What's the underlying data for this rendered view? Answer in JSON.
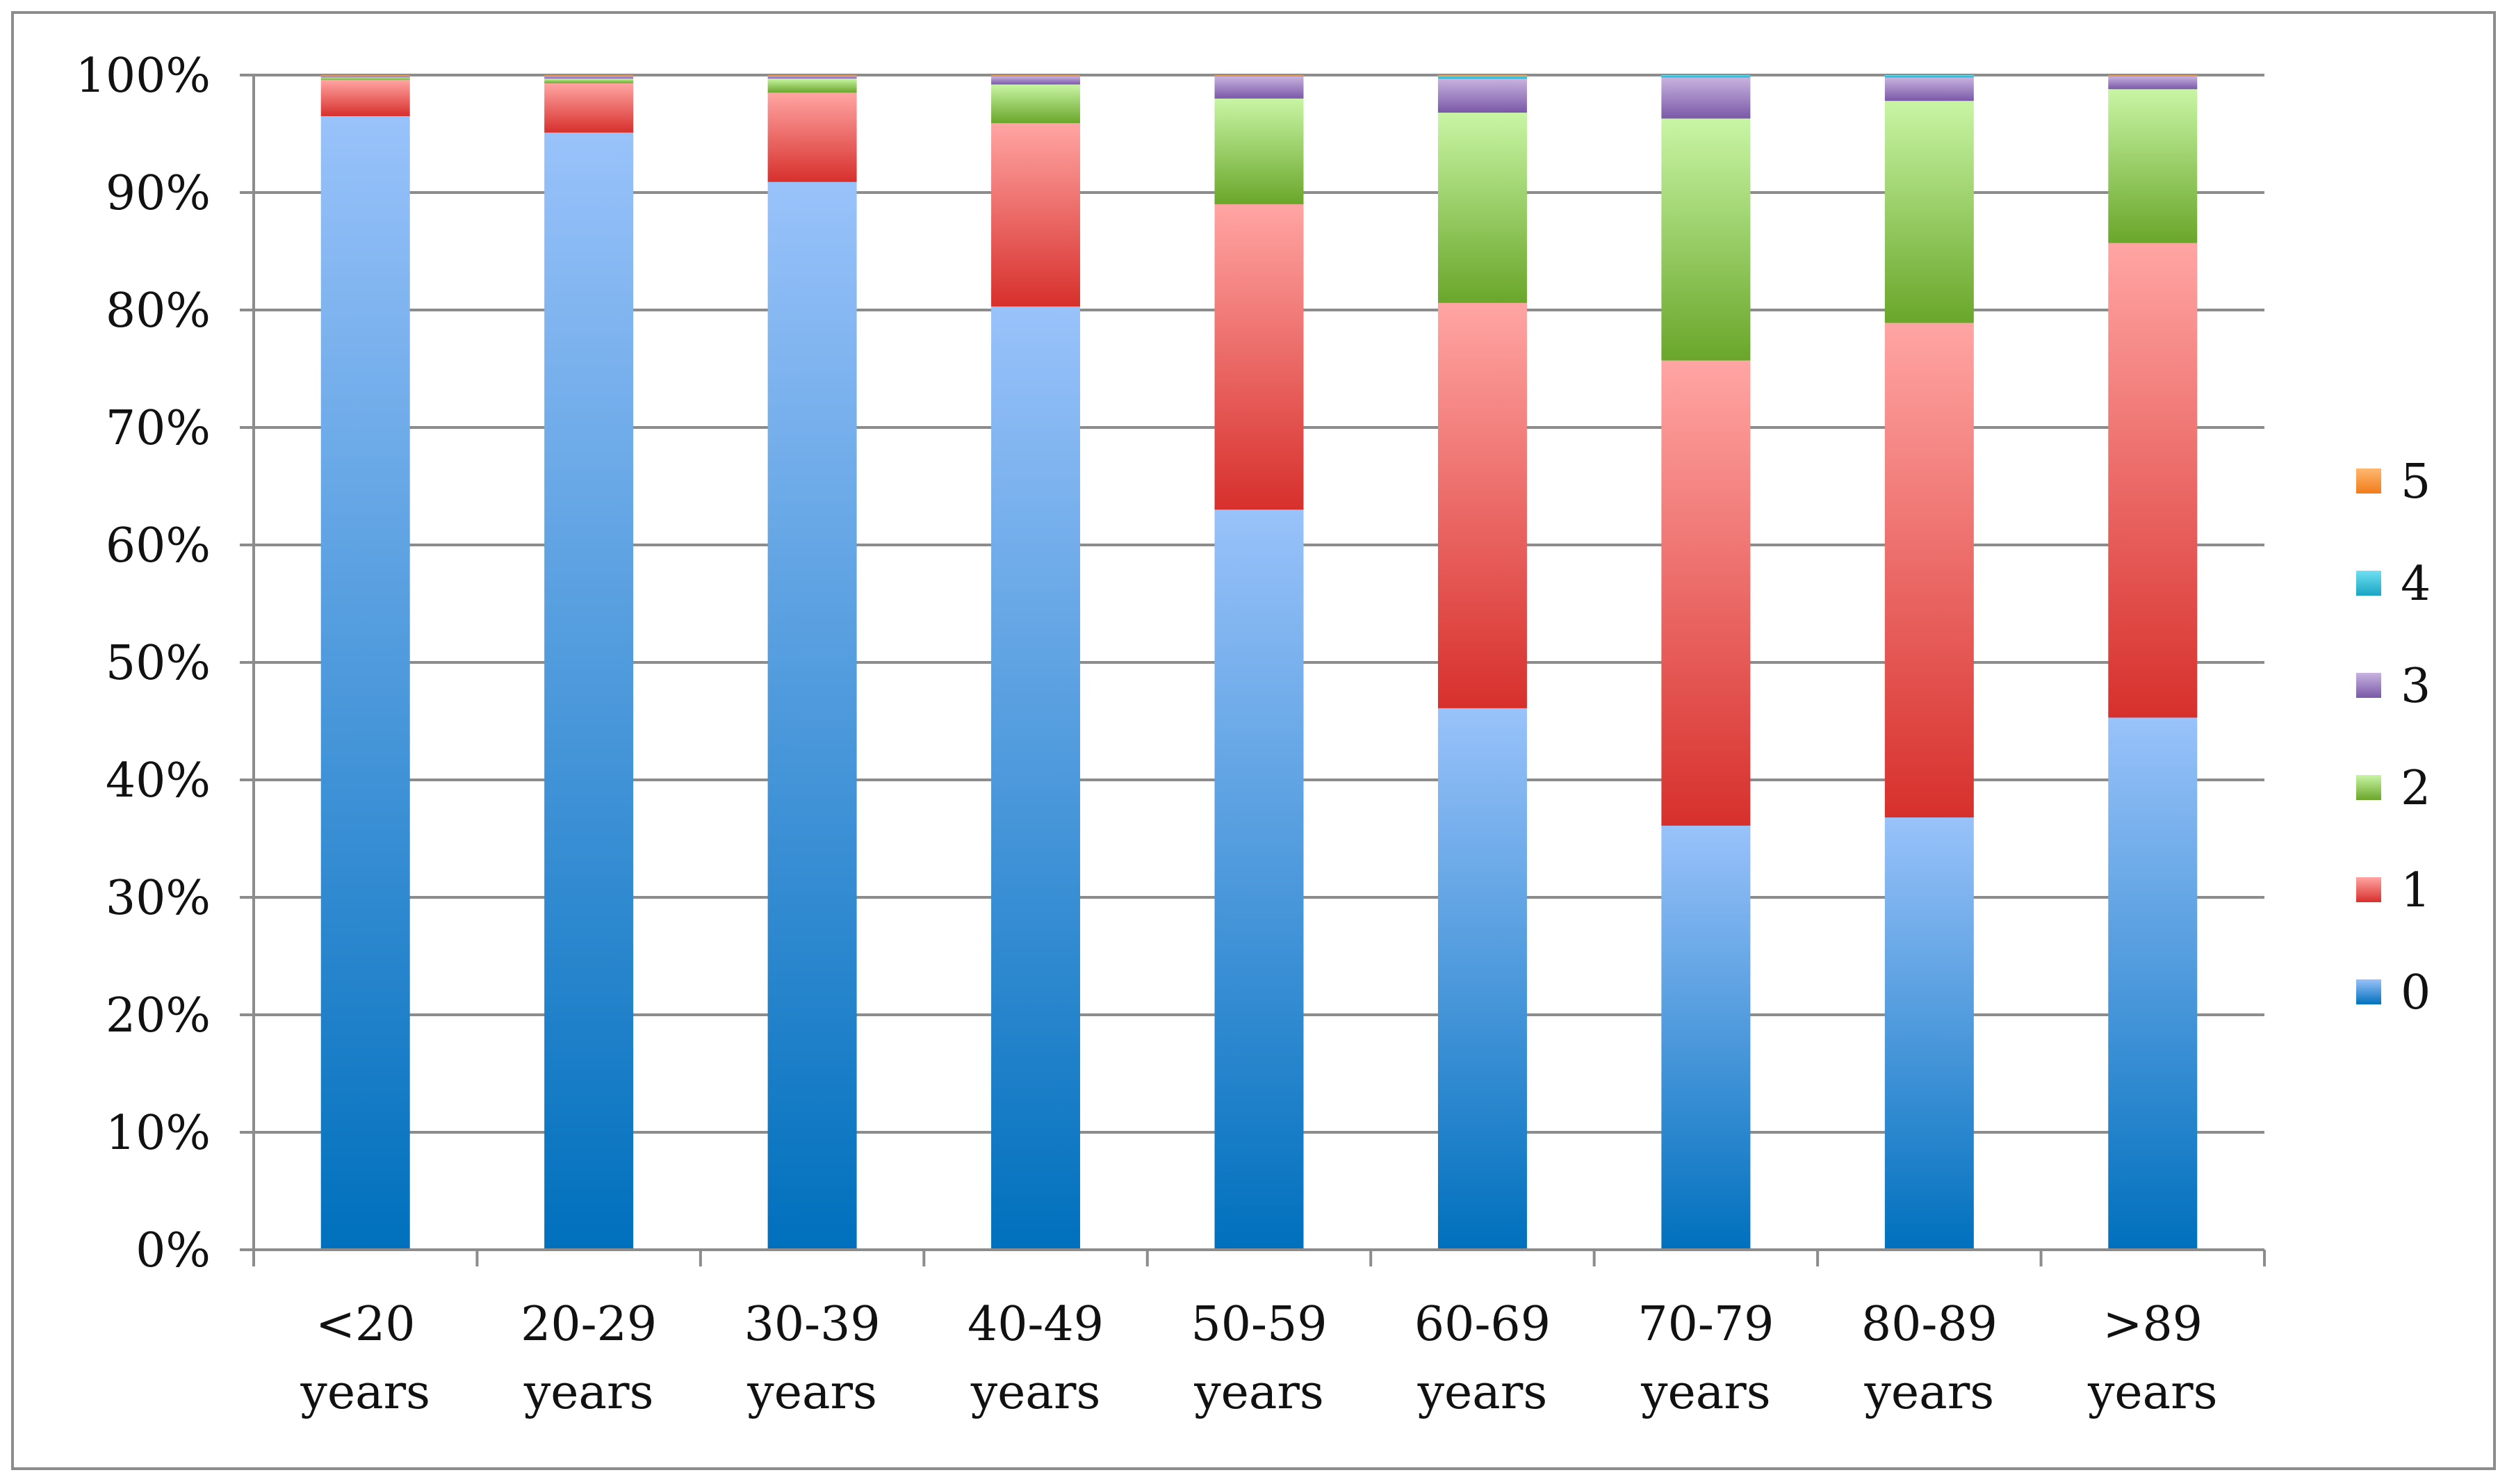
{
  "chart_data": {
    "type": "bar",
    "stacked": true,
    "normalized": true,
    "title": "",
    "xlabel": "",
    "ylabel": "",
    "ylim": [
      0,
      100
    ],
    "yticks": [
      "0%",
      "10%",
      "20%",
      "30%",
      "40%",
      "50%",
      "60%",
      "70%",
      "80%",
      "90%",
      "100%"
    ],
    "grid": true,
    "legend_position": "right",
    "categories": [
      [
        "<20",
        "years"
      ],
      [
        "20-29",
        "years"
      ],
      [
        "30-39",
        "years"
      ],
      [
        "40-49",
        "years"
      ],
      [
        "50-59",
        "years"
      ],
      [
        "60-69",
        "years"
      ],
      [
        "70-79",
        "years"
      ],
      [
        "80-89",
        "years"
      ],
      [
        ">89",
        "years"
      ]
    ],
    "series": [
      {
        "name": "0",
        "values": [
          96.5,
          95.1,
          90.9,
          80.3,
          63.0,
          46.1,
          36.1,
          36.8,
          45.3
        ],
        "color_light": "#99c2fa",
        "color_dark": "#0070bd"
      },
      {
        "name": "1",
        "values": [
          3.1,
          4.2,
          7.6,
          15.6,
          26.0,
          34.5,
          39.6,
          42.1,
          40.4
        ],
        "color_light": "#ffa5a3",
        "color_dark": "#d7302c"
      },
      {
        "name": "2",
        "values": [
          0.2,
          0.4,
          1.2,
          3.3,
          9.0,
          16.2,
          20.6,
          18.9,
          13.1
        ],
        "color_light": "#c8f5a4",
        "color_dark": "#6aa62a"
      },
      {
        "name": "3",
        "values": [
          0.1,
          0.2,
          0.2,
          0.7,
          1.9,
          2.9,
          3.5,
          2.0,
          1.1
        ],
        "color_light": "#c8b3df",
        "color_dark": "#7a58a8"
      },
      {
        "name": "4",
        "values": [
          0.05,
          0.05,
          0.05,
          0.05,
          0.05,
          0.2,
          0.2,
          0.2,
          0.05
        ],
        "color_light": "#6fe0f2",
        "color_dark": "#1aa5c4"
      },
      {
        "name": "5",
        "values": [
          0.05,
          0.05,
          0.05,
          0.05,
          0.05,
          0.1,
          0.0,
          0.0,
          0.05
        ],
        "color_light": "#ffb870",
        "color_dark": "#f07c1a"
      }
    ],
    "legend_order": [
      "5",
      "4",
      "3",
      "2",
      "1",
      "0"
    ]
  }
}
